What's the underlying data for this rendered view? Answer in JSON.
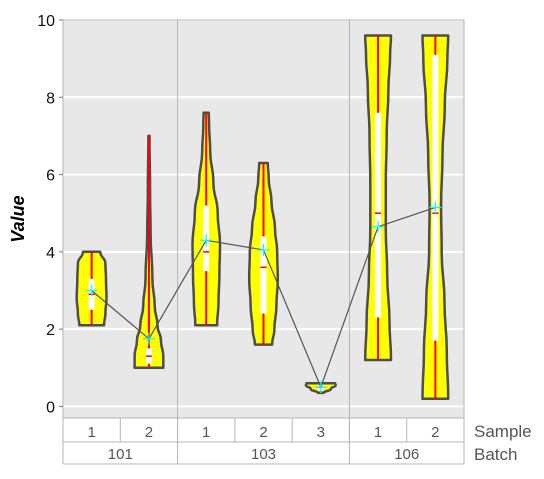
{
  "chart_data": {
    "type": "violin",
    "ylabel": "Value",
    "ylim": [
      -0.3,
      10
    ],
    "yticks": [
      0,
      2,
      4,
      6,
      8,
      10
    ],
    "grid": true,
    "x_levels": [
      {
        "name": "Sample",
        "labels": [
          "1",
          "2",
          "1",
          "2",
          "3",
          "1",
          "2"
        ]
      },
      {
        "name": "Batch",
        "groups": [
          {
            "label": "101",
            "count": 2
          },
          {
            "label": "103",
            "count": 3
          },
          {
            "label": "106",
            "count": 2
          }
        ]
      }
    ],
    "violins": [
      {
        "batch": "101",
        "sample": "1",
        "min": 2.1,
        "max": 4.0,
        "q1": 2.5,
        "q3": 3.3,
        "median": 2.9,
        "mean": 3.0,
        "profile": [
          [
            2.1,
            0.43
          ],
          [
            2.4,
            0.48
          ],
          [
            2.8,
            0.52
          ],
          [
            3.3,
            0.5
          ],
          [
            3.7,
            0.48
          ],
          [
            4.0,
            0.3
          ]
        ]
      },
      {
        "batch": "101",
        "sample": "2",
        "min": 1.0,
        "max": 7.0,
        "q1": 1.1,
        "q3": 1.5,
        "median": 1.3,
        "mean": 1.75,
        "profile": [
          [
            1.0,
            0.5
          ],
          [
            1.3,
            0.5
          ],
          [
            1.7,
            0.42
          ],
          [
            2.1,
            0.3
          ],
          [
            2.6,
            0.2
          ],
          [
            3.3,
            0.12
          ],
          [
            4.5,
            0.06
          ],
          [
            5.5,
            0.04
          ],
          [
            7.0,
            0.02
          ]
        ]
      },
      {
        "batch": "103",
        "sample": "1",
        "min": 2.1,
        "max": 7.6,
        "q1": 3.5,
        "q3": 5.2,
        "median": 4.0,
        "mean": 4.3,
        "profile": [
          [
            2.1,
            0.38
          ],
          [
            2.7,
            0.43
          ],
          [
            3.4,
            0.46
          ],
          [
            4.2,
            0.48
          ],
          [
            5.0,
            0.4
          ],
          [
            5.8,
            0.25
          ],
          [
            6.6,
            0.14
          ],
          [
            7.3,
            0.1
          ],
          [
            7.6,
            0.09
          ]
        ]
      },
      {
        "batch": "103",
        "sample": "2",
        "min": 1.6,
        "max": 6.3,
        "q1": 2.4,
        "q3": 4.4,
        "median": 3.6,
        "mean": 4.05,
        "profile": [
          [
            1.6,
            0.3
          ],
          [
            2.0,
            0.38
          ],
          [
            2.6,
            0.45
          ],
          [
            3.3,
            0.5
          ],
          [
            4.0,
            0.48
          ],
          [
            4.6,
            0.4
          ],
          [
            5.3,
            0.28
          ],
          [
            5.9,
            0.18
          ],
          [
            6.3,
            0.15
          ]
        ]
      },
      {
        "batch": "103",
        "sample": "3",
        "min": 0.35,
        "max": 0.6,
        "q1": 0.4,
        "q3": 0.55,
        "median": 0.5,
        "mean": 0.5,
        "profile": [
          [
            0.35,
            0.1
          ],
          [
            0.45,
            0.35
          ],
          [
            0.55,
            0.52
          ],
          [
            0.6,
            0.5
          ]
        ]
      },
      {
        "batch": "106",
        "sample": "1",
        "min": 1.2,
        "max": 9.6,
        "q1": 2.3,
        "q3": 7.6,
        "median": 5.0,
        "mean": 4.65,
        "profile": [
          [
            1.2,
            0.45
          ],
          [
            2.2,
            0.4
          ],
          [
            3.4,
            0.32
          ],
          [
            4.6,
            0.27
          ],
          [
            5.8,
            0.27
          ],
          [
            7.0,
            0.3
          ],
          [
            8.2,
            0.36
          ],
          [
            9.1,
            0.42
          ],
          [
            9.6,
            0.45
          ]
        ]
      },
      {
        "batch": "106",
        "sample": "2",
        "min": 0.2,
        "max": 9.6,
        "q1": 1.7,
        "q3": 9.1,
        "median": 5.0,
        "mean": 5.15,
        "profile": [
          [
            0.2,
            0.45
          ],
          [
            1.4,
            0.4
          ],
          [
            2.7,
            0.32
          ],
          [
            4.0,
            0.22
          ],
          [
            5.2,
            0.2
          ],
          [
            6.5,
            0.25
          ],
          [
            7.8,
            0.33
          ],
          [
            9.0,
            0.42
          ],
          [
            9.6,
            0.45
          ]
        ]
      }
    ],
    "colors": {
      "violin_fill": "#ffff00",
      "violin_outline": "#4d4d4d",
      "range_line": "#ff0000",
      "iqr_box": "#ffffff",
      "mean_marker": "#00ffff",
      "connect_line": "#555555",
      "plot_background": "#e8e8e8",
      "grid": "#ffffff"
    }
  }
}
